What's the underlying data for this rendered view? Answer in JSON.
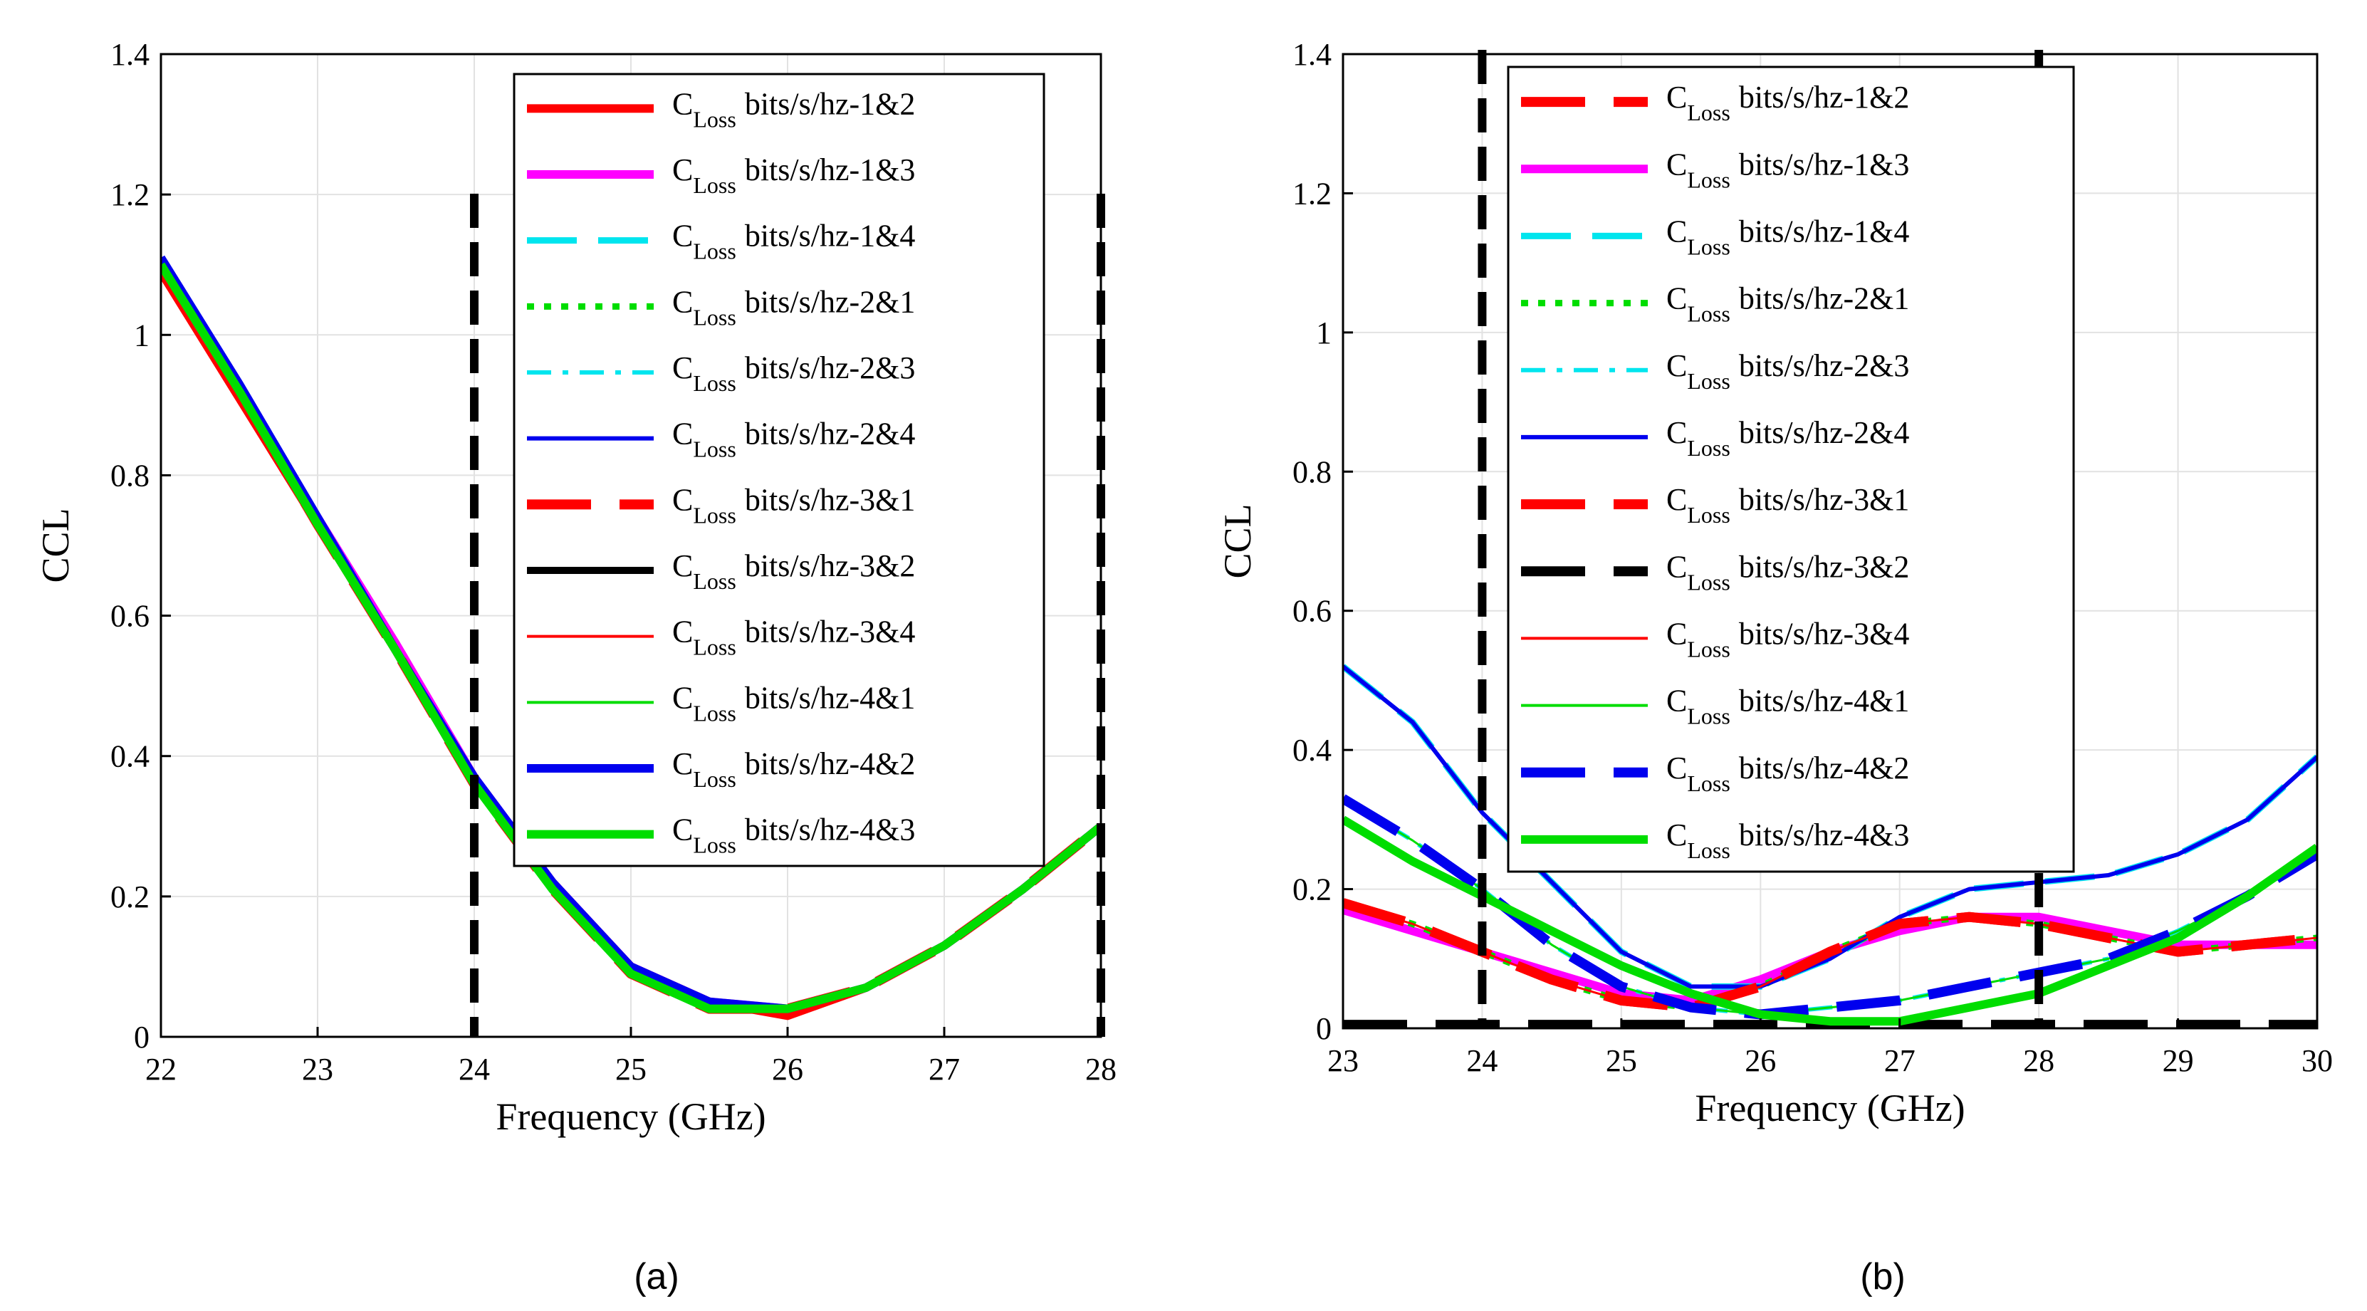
{
  "chart_data": [
    {
      "type": "line",
      "panel_label": "(a)",
      "xlabel": "Frequency (GHz)",
      "ylabel": "CCL",
      "xlim": [
        22,
        28
      ],
      "ylim": [
        0,
        1.4
      ],
      "xticks": [
        "22",
        "23",
        "24",
        "25",
        "26",
        "27",
        "28"
      ],
      "yticks": [
        "0",
        "0.2",
        "0.4",
        "0.6",
        "0.8",
        "1",
        "1.2",
        "1.4"
      ],
      "grid": true,
      "legend_position": "top-right",
      "vlines": [
        24,
        28
      ],
      "x": [
        22,
        22.5,
        23,
        23.5,
        24,
        24.5,
        25,
        25.5,
        26,
        26.5,
        27,
        27.5,
        28
      ],
      "series": [
        {
          "name": "bits/s/hz-1&2",
          "color": "#ff0000",
          "style": "thick",
          "values": [
            1.09,
            0.91,
            0.73,
            0.55,
            0.36,
            0.22,
            0.1,
            0.05,
            0.03,
            0.07,
            0.13,
            0.21,
            0.3
          ]
        },
        {
          "name": "bits/s/hz-1&3",
          "color": "#ff00ff",
          "style": "thick",
          "values": [
            1.1,
            0.92,
            0.74,
            0.56,
            0.37,
            0.22,
            0.1,
            0.05,
            0.04,
            0.07,
            0.13,
            0.21,
            0.3
          ]
        },
        {
          "name": "bits/s/hz-1&4",
          "color": "#00e5ee",
          "style": "dash",
          "values": [
            1.1,
            0.92,
            0.73,
            0.55,
            0.36,
            0.21,
            0.09,
            0.04,
            0.04,
            0.07,
            0.13,
            0.21,
            0.3
          ]
        },
        {
          "name": "bits/s/hz-2&1",
          "color": "#00dd00",
          "style": "dot",
          "values": [
            1.1,
            0.92,
            0.73,
            0.55,
            0.36,
            0.21,
            0.09,
            0.04,
            0.04,
            0.07,
            0.13,
            0.21,
            0.3
          ]
        },
        {
          "name": "bits/s/hz-2&3",
          "color": "#00e5ee",
          "style": "dashdot",
          "values": [
            1.1,
            0.92,
            0.73,
            0.55,
            0.36,
            0.21,
            0.09,
            0.04,
            0.04,
            0.07,
            0.13,
            0.21,
            0.3
          ]
        },
        {
          "name": "bits/s/hz-2&4",
          "color": "#0000ee",
          "style": "solid",
          "values": [
            1.11,
            0.93,
            0.74,
            0.55,
            0.36,
            0.21,
            0.09,
            0.04,
            0.04,
            0.07,
            0.13,
            0.21,
            0.3
          ]
        },
        {
          "name": "bits/s/hz-3&1",
          "color": "#ff0000",
          "style": "dashthick",
          "values": [
            1.1,
            0.92,
            0.73,
            0.55,
            0.36,
            0.21,
            0.09,
            0.04,
            0.04,
            0.07,
            0.13,
            0.21,
            0.3
          ]
        },
        {
          "name": "bits/s/hz-3&2",
          "color": "#000000",
          "style": "solidthick",
          "values": [
            1.1,
            0.92,
            0.73,
            0.55,
            0.36,
            0.21,
            0.09,
            0.04,
            0.04,
            0.07,
            0.13,
            0.21,
            0.3
          ]
        },
        {
          "name": "bits/s/hz-3&4",
          "color": "#ff0000",
          "style": "thin",
          "values": [
            1.1,
            0.92,
            0.73,
            0.55,
            0.36,
            0.21,
            0.09,
            0.04,
            0.04,
            0.07,
            0.13,
            0.21,
            0.3
          ]
        },
        {
          "name": "bits/s/hz-4&1",
          "color": "#00dd00",
          "style": "thin",
          "values": [
            1.1,
            0.92,
            0.73,
            0.55,
            0.36,
            0.21,
            0.09,
            0.04,
            0.04,
            0.07,
            0.13,
            0.21,
            0.3
          ]
        },
        {
          "name": "bits/s/hz-4&2",
          "color": "#0000ee",
          "style": "thick",
          "values": [
            1.11,
            0.93,
            0.74,
            0.55,
            0.37,
            0.22,
            0.1,
            0.05,
            0.04,
            0.07,
            0.13,
            0.21,
            0.3
          ]
        },
        {
          "name": "bits/s/hz-4&3",
          "color": "#00dd00",
          "style": "thick",
          "values": [
            1.1,
            0.92,
            0.73,
            0.55,
            0.36,
            0.21,
            0.09,
            0.04,
            0.04,
            0.07,
            0.13,
            0.21,
            0.3
          ]
        }
      ]
    },
    {
      "type": "line",
      "panel_label": "(b)",
      "xlabel": "Frequency (GHz)",
      "ylabel": "CCL",
      "xlim": [
        23,
        30
      ],
      "ylim": [
        0,
        1.4
      ],
      "xticks": [
        "23",
        "24",
        "25",
        "26",
        "27",
        "28",
        "29",
        "30"
      ],
      "yticks": [
        "0",
        "0.2",
        "0.4",
        "0.6",
        "0.8",
        "1",
        "1.2",
        "1.4"
      ],
      "grid": true,
      "legend_position": "top-left",
      "vlines": [
        24,
        28
      ],
      "x": [
        23,
        23.5,
        24,
        24.5,
        25,
        25.5,
        26,
        26.5,
        27,
        27.5,
        28,
        28.5,
        29,
        29.5,
        30
      ],
      "series": [
        {
          "name": "bits/s/hz-1&2",
          "color": "#ff0000",
          "style": "dashthick",
          "values": [
            0.18,
            0.15,
            0.11,
            0.07,
            0.04,
            0.03,
            0.06,
            0.11,
            0.15,
            0.16,
            0.15,
            0.13,
            0.11,
            0.12,
            0.13
          ]
        },
        {
          "name": "bits/s/hz-1&3",
          "color": "#ff00ff",
          "style": "thick",
          "values": [
            0.17,
            0.14,
            0.11,
            0.08,
            0.05,
            0.04,
            0.07,
            0.11,
            0.14,
            0.16,
            0.16,
            0.14,
            0.12,
            0.12,
            0.12
          ]
        },
        {
          "name": "bits/s/hz-1&4",
          "color": "#00e5ee",
          "style": "dash",
          "values": [
            0.52,
            0.44,
            0.31,
            0.21,
            0.11,
            0.06,
            0.06,
            0.1,
            0.16,
            0.2,
            0.21,
            0.22,
            0.25,
            0.3,
            0.39
          ]
        },
        {
          "name": "bits/s/hz-2&1",
          "color": "#00dd00",
          "style": "dot",
          "values": [
            0.18,
            0.15,
            0.11,
            0.07,
            0.04,
            0.03,
            0.06,
            0.11,
            0.15,
            0.16,
            0.15,
            0.13,
            0.11,
            0.12,
            0.13
          ]
        },
        {
          "name": "bits/s/hz-2&3",
          "color": "#00e5ee",
          "style": "dashdot",
          "values": [
            0.33,
            0.27,
            0.2,
            0.12,
            0.06,
            0.03,
            0.02,
            0.03,
            0.04,
            0.06,
            0.08,
            0.1,
            0.14,
            0.19,
            0.25
          ]
        },
        {
          "name": "bits/s/hz-2&4",
          "color": "#0000ee",
          "style": "solid",
          "values": [
            0.52,
            0.44,
            0.31,
            0.21,
            0.11,
            0.06,
            0.06,
            0.1,
            0.16,
            0.2,
            0.21,
            0.22,
            0.25,
            0.3,
            0.39
          ]
        },
        {
          "name": "bits/s/hz-3&1",
          "color": "#ff0000",
          "style": "dashthick",
          "values": [
            0.18,
            0.15,
            0.11,
            0.07,
            0.04,
            0.03,
            0.06,
            0.11,
            0.15,
            0.16,
            0.15,
            0.13,
            0.11,
            0.12,
            0.13
          ]
        },
        {
          "name": "bits/s/hz-3&2",
          "color": "#000000",
          "style": "dashthick",
          "values": [
            0.005,
            0.005,
            0.005,
            0.005,
            0.005,
            0.005,
            0.005,
            0.005,
            0.005,
            0.005,
            0.005,
            0.005,
            0.005,
            0.005,
            0.005
          ]
        },
        {
          "name": "bits/s/hz-3&4",
          "color": "#ff0000",
          "style": "thin",
          "values": [
            0.18,
            0.15,
            0.11,
            0.07,
            0.04,
            0.03,
            0.06,
            0.11,
            0.15,
            0.16,
            0.15,
            0.13,
            0.11,
            0.12,
            0.13
          ]
        },
        {
          "name": "bits/s/hz-4&1",
          "color": "#00dd00",
          "style": "thin",
          "values": [
            0.33,
            0.27,
            0.2,
            0.12,
            0.06,
            0.03,
            0.02,
            0.03,
            0.04,
            0.06,
            0.08,
            0.1,
            0.14,
            0.19,
            0.25
          ]
        },
        {
          "name": "bits/s/hz-4&2",
          "color": "#0000ee",
          "style": "dashthick",
          "values": [
            0.33,
            0.27,
            0.2,
            0.12,
            0.06,
            0.03,
            0.02,
            0.03,
            0.04,
            0.06,
            0.08,
            0.1,
            0.14,
            0.19,
            0.25
          ]
        },
        {
          "name": "bits/s/hz-4&3",
          "color": "#00dd00",
          "style": "thick",
          "values": [
            0.3,
            0.24,
            0.19,
            0.14,
            0.09,
            0.05,
            0.02,
            0.01,
            0.01,
            0.03,
            0.05,
            0.09,
            0.13,
            0.19,
            0.26
          ]
        }
      ]
    }
  ],
  "legend_prefix": "C",
  "legend_subscript": "Loss"
}
